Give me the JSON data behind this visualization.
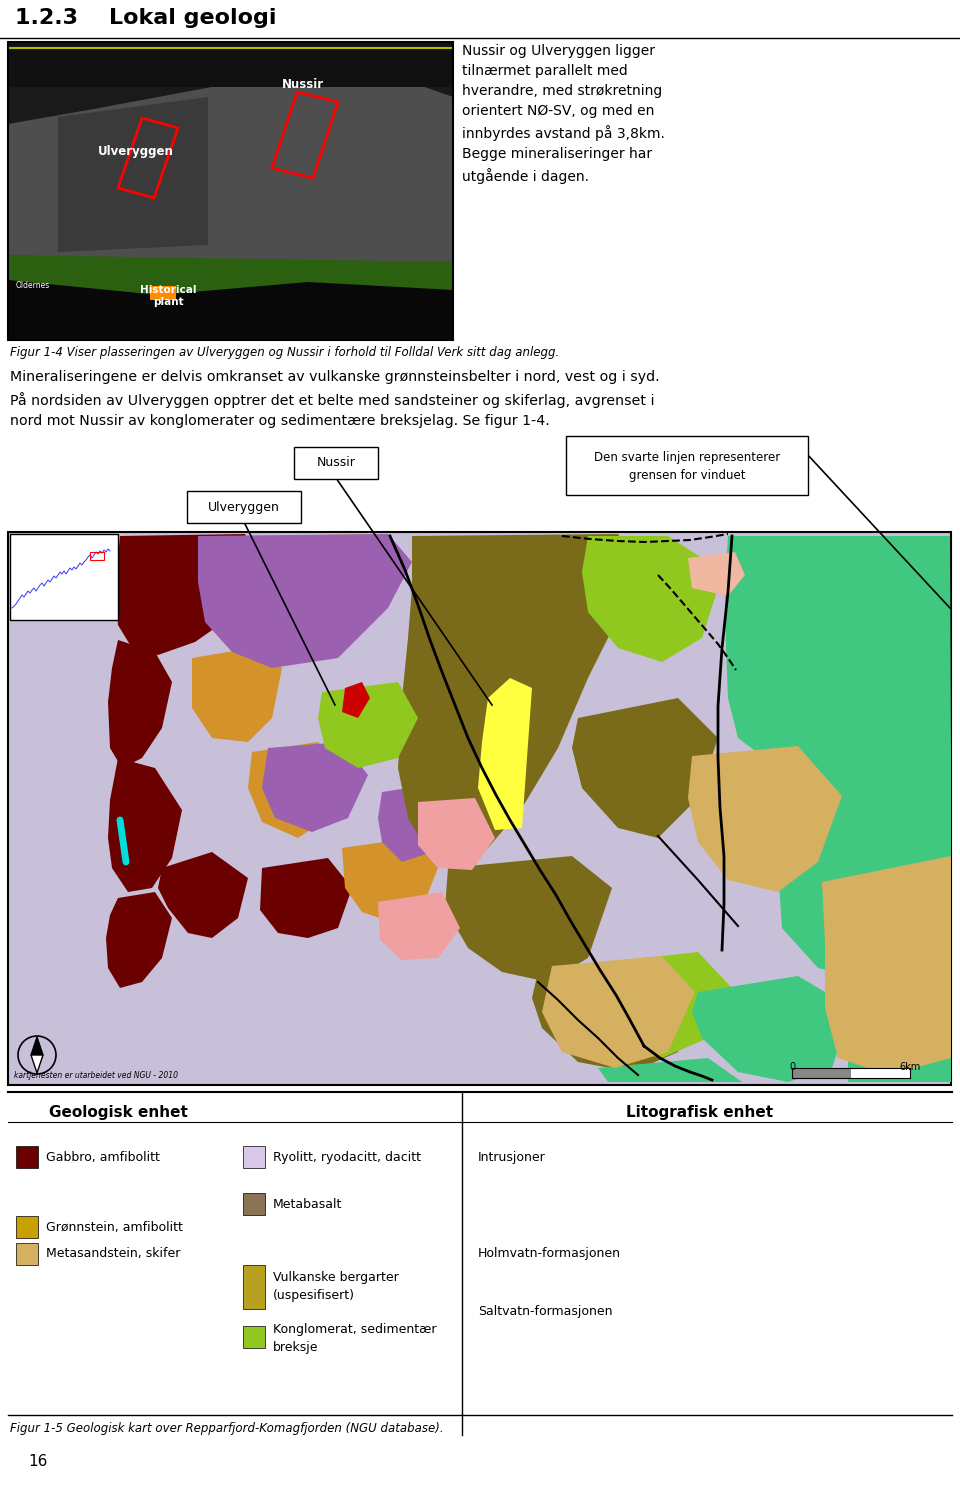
{
  "title": "1.2.3    Lokal geologi",
  "title_fontsize": 16,
  "paragraph1_right": "Nussir og Ulveryggen ligger\ntilnærmet parallelt med\nhverandre, med strøkretning\norientert NØ-SV, og med en\ninnbyrdes avstand på 3,8km.\nBegge mineraliseringer har\nutgående i dagen.",
  "caption1": "Figur 1-4 Viser plasseringen av Ulveryggen og Nussir i forhold til Folldal Verk sitt dag anlegg.",
  "para2_line1": "Mineraliseringene er delvis omkranset av vulkanske grønnsteinsbelter i nord, vest og i syd.",
  "para2_line2": "På nordsiden av Ulveryggen opptrer det et belte med sandsteiner og skiferlag, avgrenset i",
  "para2_line3": "nord mot Nussir av konglomerater og sedimentære breksjelag. Se figur 1-4.",
  "label_nussir": "Nussir",
  "label_ulveryggen": "Ulveryggen",
  "callout_text": "Den svarte linjen representerer\ngrensen for vinduet",
  "geo_header": "Geologisk enhet",
  "lito_header": "Litografisk enhet",
  "legend_geo1_color": "#6B0000",
  "legend_geo1_label": "Gabbro, amfibolitt",
  "legend_geo2_color": "#C8A000",
  "legend_geo2a_label": "Grønnstein, amfibolitt",
  "legend_geo2b_label": "Metasandstein, skifer",
  "legend_mid1_color": "#D8C8E8",
  "legend_mid1_label": "Ryolitt, ryodacitt, dacitt",
  "legend_mid2_color": "#8B7355",
  "legend_mid2_label": "Metabasalt",
  "legend_mid3_color": "#B8A020",
  "legend_mid3a_label": "Vulkanske bergarter",
  "legend_mid3b_label": "(uspesifisert)",
  "legend_mid4_color": "#90C820",
  "legend_mid4a_label": "Konglomerat, sedimentær",
  "legend_mid4b_label": "breksje",
  "legend_right1": "Intrusjoner",
  "legend_right2": "Holmvatn-formasjonen",
  "legend_right3": "Saltvatn-formasjonen",
  "caption2": "Figur 1-5 Geologisk kart over Repparfjord-Komagfjorden (NGU database).",
  "page_number": "16",
  "copyright": "kartjenesten er utarbeidet ved NGU - 2010",
  "scale_0": "0",
  "scale_1": "6km",
  "map_bg": "#C8C0D8",
  "bg_white": "#FFFFFF"
}
